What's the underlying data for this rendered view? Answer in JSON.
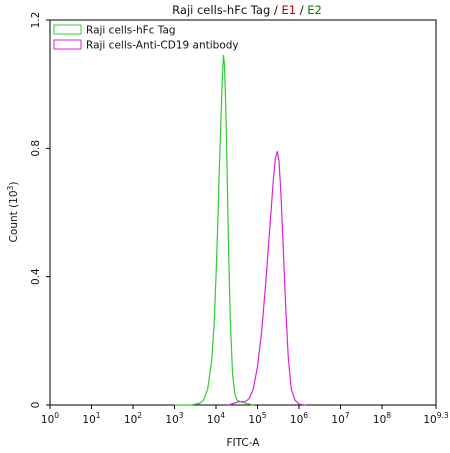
{
  "chart_data": {
    "type": "line",
    "title": {
      "main": "Raji cells-hFc Tag",
      "sep": " / ",
      "e1": "E1",
      "e2": "E2",
      "e1_color": "#c00000",
      "e2_color": "#008000"
    },
    "xlabel": "FITC-A",
    "ylabel": "Count (10",
    "ylabel_exp": "3",
    "ylabel_close": ")",
    "x_scale": "log",
    "xlim": [
      1,
      2000000000
    ],
    "ylim": [
      0,
      1.2
    ],
    "x_ticks": [
      {
        "value": 1,
        "base": "10",
        "exp": "0"
      },
      {
        "value": 10,
        "base": "10",
        "exp": "1"
      },
      {
        "value": 100,
        "base": "10",
        "exp": "2"
      },
      {
        "value": 1000,
        "base": "10",
        "exp": "3"
      },
      {
        "value": 10000,
        "base": "10",
        "exp": "4"
      },
      {
        "value": 100000,
        "base": "10",
        "exp": "5"
      },
      {
        "value": 1000000,
        "base": "10",
        "exp": "6"
      },
      {
        "value": 10000000,
        "base": "10",
        "exp": "7"
      },
      {
        "value": 100000000,
        "base": "10",
        "exp": "8"
      },
      {
        "value": 2000000000,
        "base": "10",
        "exp": "9.3"
      }
    ],
    "y_ticks": [
      {
        "value": 0,
        "label": "0"
      },
      {
        "value": 0.4,
        "label": "0.4"
      },
      {
        "value": 0.8,
        "label": "0.8"
      },
      {
        "value": 1.2,
        "label": "1.2"
      }
    ],
    "legend_position": "top-left",
    "grid": false,
    "series": [
      {
        "name": "Raji cells-hFc Tag",
        "color": "#33cc33",
        "x": [
          1000,
          2500,
          4000,
          5000,
          6300,
          7900,
          9000,
          10000,
          11000,
          12000,
          13000,
          13800,
          14400,
          15100,
          16000,
          17000,
          18200,
          20000,
          22000,
          25000,
          28000,
          32000,
          40000,
          55000,
          80000
        ],
        "y": [
          0,
          0,
          0.005,
          0.015,
          0.05,
          0.14,
          0.25,
          0.4,
          0.56,
          0.73,
          0.87,
          0.97,
          1.03,
          1.09,
          1.06,
          0.95,
          0.78,
          0.5,
          0.27,
          0.1,
          0.04,
          0.015,
          0.01,
          0.005,
          0
        ]
      },
      {
        "name": "Raji cells-Anti-CD19 antibody",
        "color": "#dd22dd",
        "x": [
          20000,
          35000,
          50000,
          63000,
          79000,
          100000,
          126000,
          158000,
          200000,
          240000,
          270000,
          300000,
          330000,
          370000,
          420000,
          480000,
          550000,
          650000,
          800000,
          1000000,
          1500000
        ],
        "y": [
          0,
          0.01,
          0.01,
          0.02,
          0.05,
          0.12,
          0.23,
          0.38,
          0.56,
          0.7,
          0.77,
          0.79,
          0.76,
          0.65,
          0.48,
          0.3,
          0.15,
          0.05,
          0.015,
          0.003,
          0
        ]
      }
    ]
  }
}
